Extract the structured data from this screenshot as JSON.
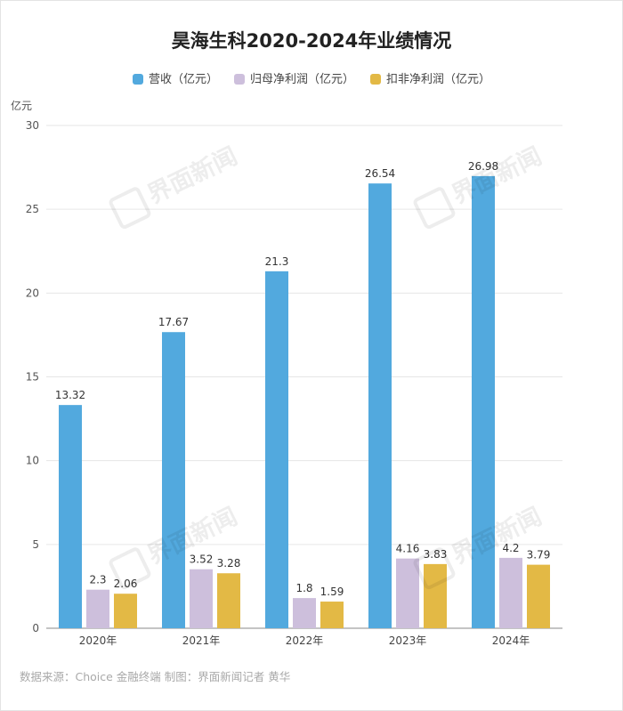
{
  "title": "昊海生科2020-2024年业绩情况",
  "unit_label": "亿元",
  "source": "数据来源：Choice 金融终端 制图：界面新闻记者 黄华",
  "watermark_text": "界面新闻",
  "colors": {
    "revenue": "#52a9de",
    "net_profit": "#cdbfdc",
    "deducted_profit": "#e3b945"
  },
  "chart_data": {
    "type": "bar",
    "title": "昊海生科2020-2024年业绩情况",
    "ylabel": "亿元",
    "xlabel": "",
    "categories": [
      "2020年",
      "2021年",
      "2022年",
      "2023年",
      "2024年"
    ],
    "ylim": [
      0,
      30
    ],
    "yticks": [
      0,
      5,
      10,
      15,
      20,
      25,
      30
    ],
    "grid": true,
    "legend_position": "top-center",
    "series": [
      {
        "name": "营收（亿元）",
        "color": "#52a9de",
        "values": [
          13.32,
          17.67,
          21.3,
          26.54,
          26.98
        ],
        "labels": [
          "13.32",
          "17.67",
          "21.3",
          "26.54",
          "26.98"
        ]
      },
      {
        "name": "归母净利润（亿元）",
        "color": "#cdbfdc",
        "values": [
          2.3,
          3.52,
          1.8,
          4.16,
          4.2
        ],
        "labels": [
          "2.3",
          "3.52",
          "1.8",
          "4.16",
          "4.2"
        ]
      },
      {
        "name": "扣非净利润（亿元）",
        "color": "#e3b945",
        "values": [
          2.06,
          3.28,
          1.59,
          3.83,
          3.79
        ],
        "labels": [
          "2.06",
          "3.28",
          "1.59",
          "3.83",
          "3.79"
        ]
      }
    ]
  }
}
